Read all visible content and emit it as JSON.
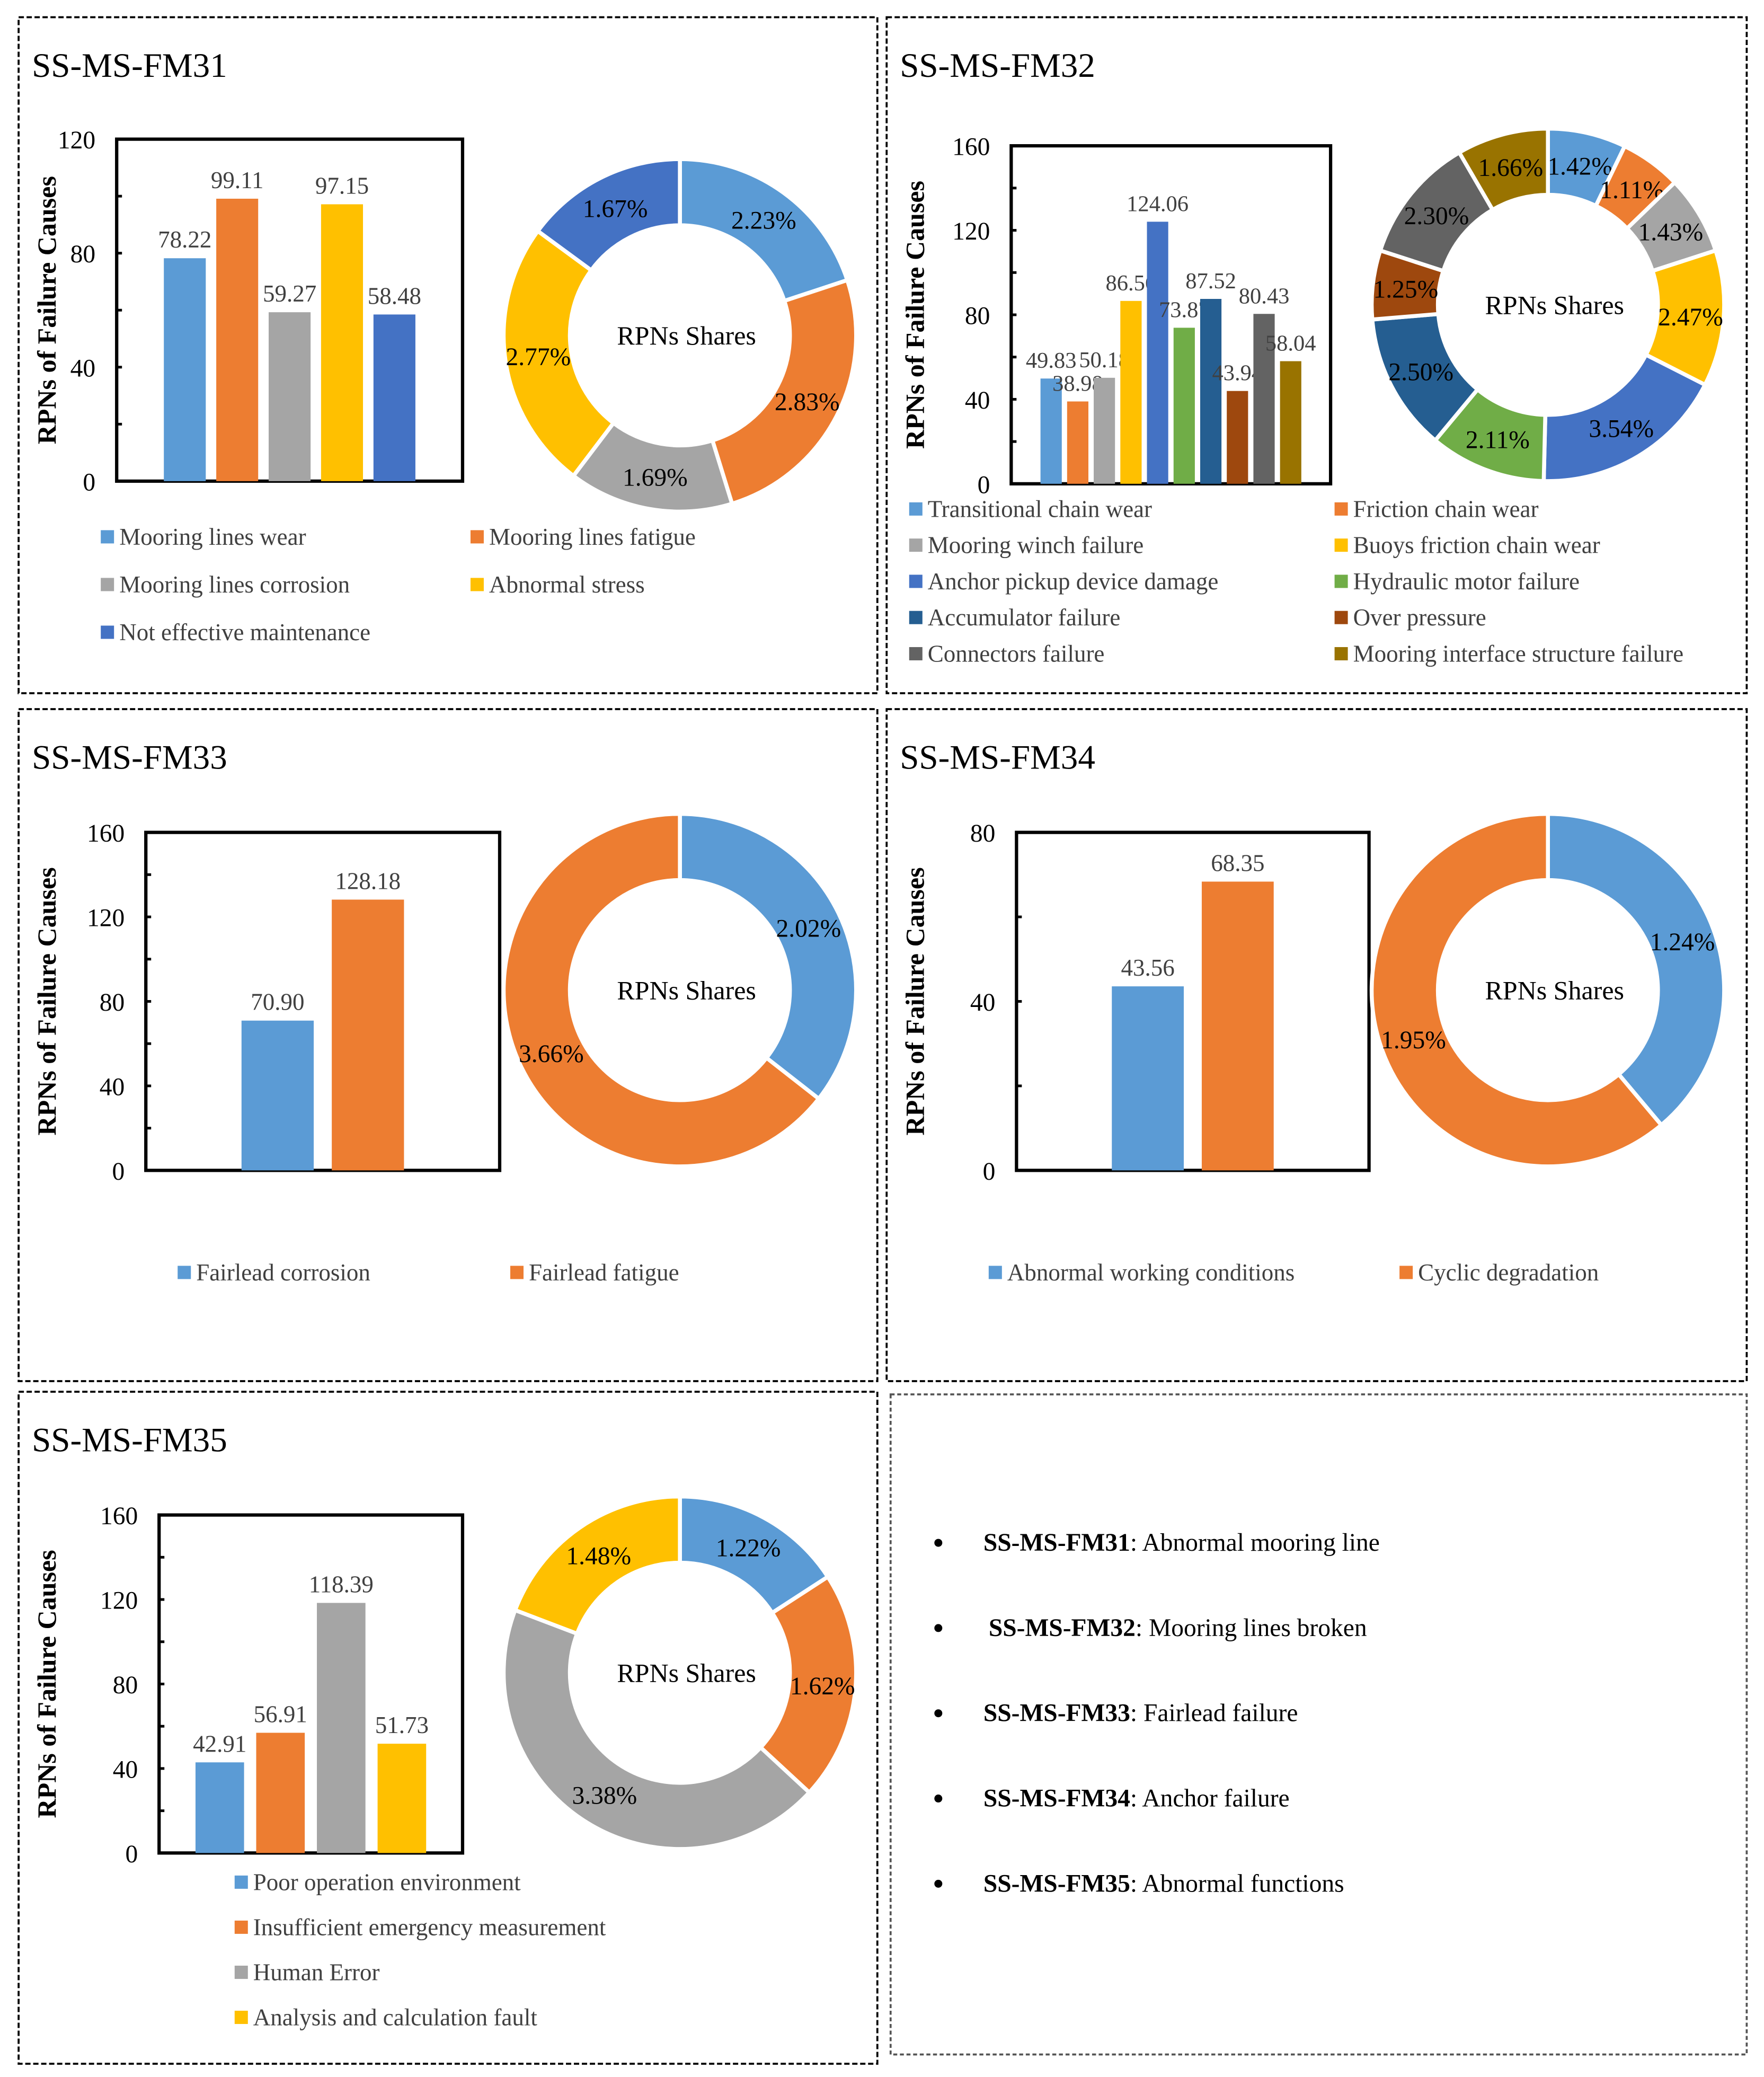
{
  "colors": [
    "#5b9bd5",
    "#ed7d31",
    "#a5a5a5",
    "#ffc000",
    "#4472c4",
    "#70ad47",
    "#255e91",
    "#9e480e",
    "#636363",
    "#997300"
  ],
  "chart_data": [
    {
      "type": "bar+donut",
      "title": "SS-MS-FM31",
      "ylabel": "RPNs of Failure Causes",
      "ylim": [
        0,
        120
      ],
      "yticks": [
        "0",
        "40",
        "80",
        "120"
      ],
      "center_label": "RPNs Shares",
      "categories": [
        "Mooring lines wear",
        "Mooring lines fatigue",
        "Mooring lines corrosion",
        "Abnormal stress",
        "Not effective maintenance"
      ],
      "values": [
        78.22,
        99.11,
        59.27,
        97.15,
        58.48
      ],
      "value_labels": [
        "78.22",
        "99.11",
        "59.27",
        "97.15",
        "58.48"
      ],
      "shares": [
        2.23,
        2.83,
        1.69,
        2.77,
        1.67
      ],
      "share_labels": [
        "2.23%",
        "2.83%",
        "1.69%",
        "2.77%",
        "1.67%"
      ],
      "color_idx": [
        0,
        1,
        2,
        3,
        4
      ]
    },
    {
      "type": "bar+donut",
      "title": "SS-MS-FM32",
      "ylabel": "RPNs of Failure Causes",
      "ylim": [
        0,
        160
      ],
      "yticks": [
        "0",
        "40",
        "80",
        "120",
        "160"
      ],
      "center_label": "RPNs Shares",
      "categories": [
        "Transitional chain wear",
        "Friction chain wear",
        "Mooring winch failure",
        "Buoys friction chain wear",
        "Anchor pickup device damage",
        "Hydraulic motor failure",
        "Accumulator failure",
        "Over pressure",
        "Connectors failure",
        "Mooring interface structure failure"
      ],
      "values": [
        49.83,
        38.98,
        50.18,
        86.56,
        124.06,
        73.87,
        87.52,
        43.94,
        80.43,
        58.04
      ],
      "value_labels": [
        "49.83",
        "38.98",
        "50.18",
        "86.56",
        "124.06",
        "73.87",
        "87.52",
        "43.94",
        "80.43",
        "58.04"
      ],
      "shares": [
        1.42,
        1.11,
        1.43,
        2.47,
        3.54,
        2.11,
        2.5,
        1.25,
        2.3,
        1.66
      ],
      "share_labels": [
        "1.42%",
        "1.11%",
        "1.43%",
        "2.47%",
        "3.54%",
        "2.11%",
        "2.50%",
        "1.25%",
        "2.30%",
        "1.66%"
      ],
      "color_idx": [
        0,
        1,
        2,
        3,
        4,
        5,
        6,
        7,
        8,
        9
      ]
    },
    {
      "type": "bar+donut",
      "title": "SS-MS-FM33",
      "ylabel": "RPNs of Failure Causes",
      "ylim": [
        0,
        160
      ],
      "yticks": [
        "0",
        "40",
        "80",
        "120",
        "160"
      ],
      "center_label": "RPNs Shares",
      "categories": [
        "Fairlead corrosion",
        "Fairlead fatigue"
      ],
      "values": [
        70.9,
        128.18
      ],
      "value_labels": [
        "70.90",
        "128.18"
      ],
      "shares": [
        2.02,
        3.66
      ],
      "share_labels": [
        "2.02%",
        "3.66%"
      ],
      "color_idx": [
        0,
        1
      ]
    },
    {
      "type": "bar+donut",
      "title": "SS-MS-FM34",
      "ylabel": "RPNs of Failure Causes",
      "ylim": [
        0,
        80
      ],
      "yticks": [
        "0",
        "40",
        "80"
      ],
      "center_label": "RPNs Shares",
      "categories": [
        "Abnormal working conditions",
        "Cyclic degradation"
      ],
      "values": [
        43.56,
        68.35
      ],
      "value_labels": [
        "43.56",
        "68.35"
      ],
      "shares": [
        1.24,
        1.95
      ],
      "share_labels": [
        "1.24%",
        "1.95%"
      ],
      "color_idx": [
        0,
        1
      ]
    },
    {
      "type": "bar+donut",
      "title": "SS-MS-FM35",
      "ylabel": "RPNs of Failure Causes",
      "ylim": [
        0,
        160
      ],
      "yticks": [
        "0",
        "40",
        "80",
        "120",
        "160"
      ],
      "center_label": "RPNs Shares",
      "categories": [
        "Poor operation environment",
        "Insufficient emergency measurement",
        "Human Error",
        "Analysis and calculation fault"
      ],
      "values": [
        42.91,
        56.91,
        118.39,
        51.73
      ],
      "value_labels": [
        "42.91",
        "56.91",
        "118.39",
        "51.73"
      ],
      "shares": [
        1.22,
        1.62,
        3.38,
        1.48
      ],
      "share_labels": [
        "1.22%",
        "1.62%",
        "3.38%",
        "1.48%"
      ],
      "color_idx": [
        0,
        1,
        2,
        3
      ]
    }
  ],
  "notes": [
    {
      "code": "SS-MS-FM31",
      "desc": ": Abnormal mooring line"
    },
    {
      "code": "SS-MS-FM32",
      "desc": ": Mooring lines broken"
    },
    {
      "code": "SS-MS-FM33",
      "desc": ": Fairlead failure"
    },
    {
      "code": "SS-MS-FM34",
      "desc": ": Anchor failure"
    },
    {
      "code": "SS-MS-FM35",
      "desc": ": Abnormal functions"
    }
  ]
}
